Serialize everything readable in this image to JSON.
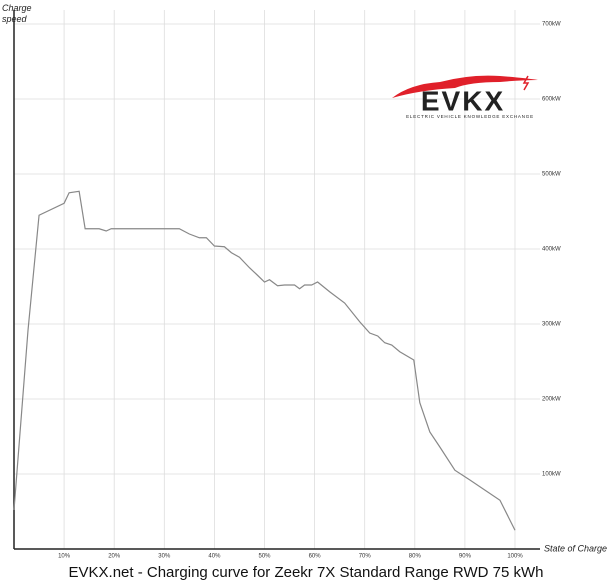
{
  "chart_data": {
    "type": "line",
    "title": "EVKX.net - Charging curve for Zeekr 7X Standard Range RWD 75 kWh",
    "y_label": "Charge speed",
    "x_label": "State of Charge",
    "logo": {
      "name": "EVKX",
      "tagline": "ELECTRIC VEHICLE KNOWLEDGE EXCHANGE"
    },
    "xlim": [
      0,
      100
    ],
    "ylim": [
      0,
      700
    ],
    "xticks": [
      {
        "value": 10,
        "label": "10%"
      },
      {
        "value": 20,
        "label": "20%"
      },
      {
        "value": 30,
        "label": "30%"
      },
      {
        "value": 40,
        "label": "40%"
      },
      {
        "value": 50,
        "label": "50%"
      },
      {
        "value": 60,
        "label": "60%"
      },
      {
        "value": 70,
        "label": "70%"
      },
      {
        "value": 80,
        "label": "80%"
      },
      {
        "value": 90,
        "label": "90%"
      },
      {
        "value": 100,
        "label": "100%"
      }
    ],
    "yticks": [
      {
        "value": 100,
        "label": "100kW"
      },
      {
        "value": 200,
        "label": "200kW"
      },
      {
        "value": 300,
        "label": "300kW"
      },
      {
        "value": 400,
        "label": "400kW"
      },
      {
        "value": 500,
        "label": "500kW"
      },
      {
        "value": 600,
        "label": "600kW"
      },
      {
        "value": 700,
        "label": "700kW"
      }
    ],
    "grid": true,
    "series": [
      {
        "color": "#888888",
        "x": [
          0,
          2.8,
          5,
          10,
          11,
          13,
          14.2,
          17,
          18.4,
          19.4,
          33,
          35,
          37,
          38.4,
          40,
          42,
          43.4,
          45,
          47,
          48.6,
          50,
          51,
          52.6,
          54,
          56,
          57,
          58,
          59.4,
          60.6,
          63,
          66,
          69,
          71,
          72.6,
          74,
          75.4,
          77,
          79.8,
          81,
          83,
          85,
          88,
          91,
          97,
          100
        ],
        "values": [
          52,
          292,
          445,
          461,
          475,
          477,
          427,
          427,
          424,
          427,
          427,
          420,
          415,
          415,
          404,
          403,
          395,
          389,
          375,
          365,
          356,
          359,
          351,
          352,
          352,
          347,
          352,
          352,
          356,
          343,
          328,
          303,
          288,
          284,
          275,
          272,
          263,
          252,
          195,
          156,
          136,
          105,
          92,
          65,
          25
        ]
      }
    ]
  }
}
